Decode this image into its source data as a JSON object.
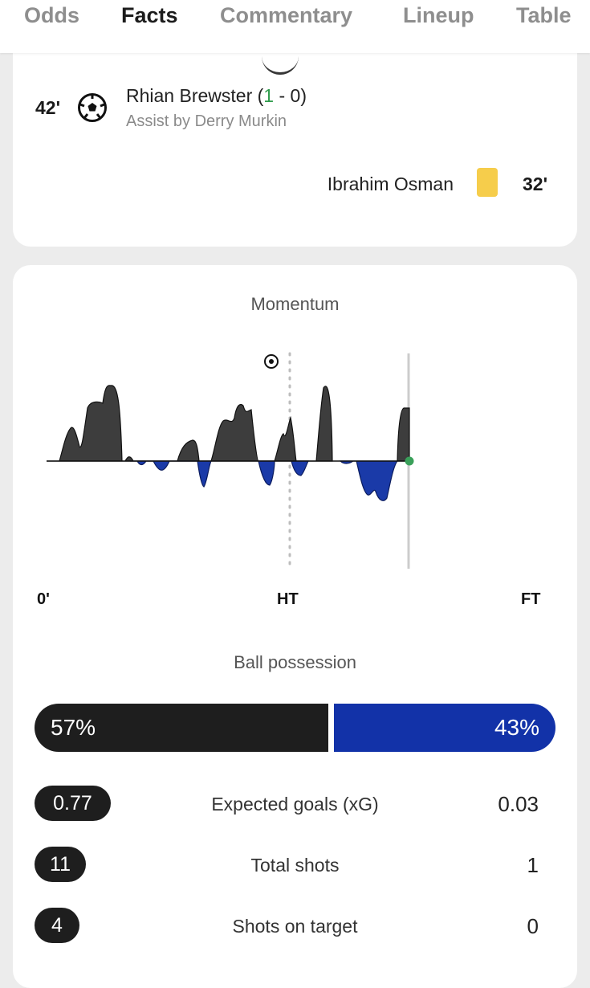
{
  "tabs": [
    {
      "label": "Odds",
      "active": false
    },
    {
      "label": "Facts",
      "active": true
    },
    {
      "label": "Commentary",
      "active": false
    },
    {
      "label": "Lineup",
      "active": false
    },
    {
      "label": "Table",
      "active": false
    }
  ],
  "events": {
    "goal": {
      "minute": "42'",
      "player": "Rhian Brewster",
      "score_open": " (",
      "score_home": "1",
      "score_rest": " - 0)",
      "assist": "Assist by Derry Murkin",
      "icon": "soccer-ball-icon"
    },
    "card": {
      "minute": "32'",
      "player": "Ibrahim Osman",
      "icon": "yellow-card-icon",
      "color": "#f6cd4b"
    }
  },
  "momentum": {
    "title": "Momentum",
    "start_label": "0'",
    "ht_label": "HT",
    "ft_label": "FT",
    "home_color": "#3d3d3d",
    "away_color": "#1a3aa8",
    "goal_marker": "soccer-ball-icon",
    "current_marker_color": "#3aa05a"
  },
  "possession": {
    "title": "Ball possession",
    "home": "57%",
    "away": "43%",
    "home_value": 57,
    "away_value": 43,
    "home_color": "#1e1e1e",
    "away_color": "#1232a8"
  },
  "stats": [
    {
      "label": "Expected goals (xG)",
      "home": "0.77",
      "away": "0.03"
    },
    {
      "label": "Total shots",
      "home": "11",
      "away": "1"
    },
    {
      "label": "Shots on target",
      "home": "4",
      "away": "0"
    }
  ]
}
